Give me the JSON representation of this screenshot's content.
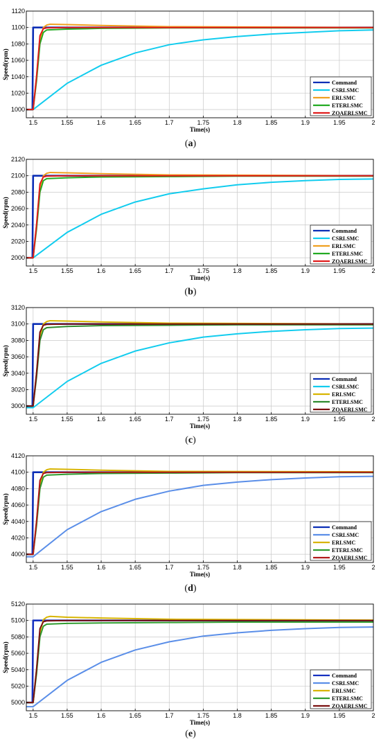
{
  "chart_data": [
    {
      "type": "line",
      "caption": "a",
      "xlabel": "Time(s)",
      "ylabel": "Speed(rpm)",
      "xlim": [
        1.49,
        2.0
      ],
      "ylim": [
        990,
        1120
      ],
      "xticks": [
        1.5,
        1.55,
        1.6,
        1.65,
        1.7,
        1.75,
        1.8,
        1.85,
        1.9,
        1.95,
        2
      ],
      "xtick_labels": [
        "1.5",
        "1.55",
        "1.6",
        "1.65",
        "1.7",
        "1.75",
        "1.8",
        "1.85",
        "1.9",
        "1.95",
        "2"
      ],
      "yticks": [
        1000,
        1020,
        1040,
        1060,
        1080,
        1100,
        1120
      ],
      "ytick_labels": [
        "1000",
        "1020",
        "1040",
        "1060",
        "1080",
        "1100",
        "1120"
      ],
      "grid": true,
      "legend_position": "bottom-right",
      "series": [
        {
          "name": "Command",
          "color": "#0a2db5",
          "x": [
            1.49,
            1.499,
            1.5,
            2.0
          ],
          "y": [
            1000,
            1000,
            1100,
            1100
          ]
        },
        {
          "name": "CSRLSMC",
          "color": "#11ccee",
          "x": [
            1.49,
            1.5,
            1.55,
            1.6,
            1.65,
            1.7,
            1.75,
            1.8,
            1.85,
            1.9,
            1.95,
            2.0
          ],
          "y": [
            1000,
            1000,
            1032,
            1054,
            1069,
            1079,
            1085,
            1089,
            1092,
            1094,
            1096,
            1097
          ]
        },
        {
          "name": "ERLSMC",
          "color": "#f0a020",
          "x": [
            1.49,
            1.5,
            1.505,
            1.51,
            1.515,
            1.52,
            1.525,
            1.55,
            1.6,
            1.7,
            2.0
          ],
          "y": [
            1000,
            1000,
            1040,
            1085,
            1100,
            1103,
            1104,
            1103.5,
            1102.5,
            1101,
            1100
          ]
        },
        {
          "name": "ETERLSMC",
          "color": "#22aa22",
          "x": [
            1.49,
            1.5,
            1.505,
            1.51,
            1.515,
            1.52,
            1.55,
            1.6,
            1.7,
            1.8,
            2.0
          ],
          "y": [
            1000,
            1000,
            1035,
            1080,
            1094,
            1097,
            1098,
            1099,
            1099.5,
            1099.5,
            1099.5
          ]
        },
        {
          "name": "ZOAERLSMC",
          "color": "#e01b1b",
          "x": [
            1.49,
            1.5,
            1.505,
            1.51,
            1.515,
            1.52,
            1.55,
            1.6,
            2.0
          ],
          "y": [
            1000,
            1000,
            1040,
            1090,
            1098.5,
            1099.5,
            1100,
            1100,
            1100
          ]
        }
      ]
    },
    {
      "type": "line",
      "caption": "b",
      "xlabel": "Time(s)",
      "ylabel": "Speed(rpm)",
      "xlim": [
        1.49,
        2.0
      ],
      "ylim": [
        1990,
        2120
      ],
      "xticks": [
        1.5,
        1.55,
        1.6,
        1.65,
        1.7,
        1.75,
        1.8,
        1.85,
        1.9,
        1.95,
        2
      ],
      "xtick_labels": [
        "1.5",
        "1.55",
        "1.6",
        "1.65",
        "1.7",
        "1.75",
        "1.8",
        "1.85",
        "1.9",
        "1.95",
        "2"
      ],
      "yticks": [
        2000,
        2020,
        2040,
        2060,
        2080,
        2100,
        2120
      ],
      "ytick_labels": [
        "2000",
        "2020",
        "2040",
        "2060",
        "2080",
        "2100",
        "2120"
      ],
      "grid": true,
      "legend_position": "bottom-right",
      "series": [
        {
          "name": "Command",
          "color": "#0a2db5",
          "x": [
            1.49,
            1.499,
            1.5,
            2.0
          ],
          "y": [
            2000,
            2000,
            2100,
            2100
          ]
        },
        {
          "name": "CSRLSMC",
          "color": "#11ccee",
          "x": [
            1.49,
            1.5,
            1.55,
            1.6,
            1.65,
            1.7,
            1.75,
            1.8,
            1.85,
            1.9,
            1.95,
            2.0
          ],
          "y": [
            2000,
            2000,
            2031,
            2053,
            2068,
            2078,
            2084,
            2089,
            2092,
            2094,
            2095.5,
            2096
          ]
        },
        {
          "name": "ERLSMC",
          "color": "#f0a020",
          "x": [
            1.49,
            1.5,
            1.505,
            1.51,
            1.515,
            1.52,
            1.525,
            1.55,
            1.6,
            1.7,
            2.0
          ],
          "y": [
            2000,
            2000,
            2040,
            2085,
            2100,
            2103,
            2104,
            2103.5,
            2102.5,
            2101,
            2100
          ]
        },
        {
          "name": "ETERLSMC",
          "color": "#22aa22",
          "x": [
            1.49,
            1.5,
            1.505,
            1.51,
            1.515,
            1.52,
            1.55,
            1.6,
            1.7,
            1.8,
            2.0
          ],
          "y": [
            2000,
            2000,
            2035,
            2080,
            2094,
            2096.5,
            2097.5,
            2098.5,
            2099,
            2099.5,
            2099.5
          ]
        },
        {
          "name": "ZOAERLSMC",
          "color": "#e01b1b",
          "x": [
            1.49,
            1.5,
            1.505,
            1.51,
            1.515,
            1.52,
            1.55,
            1.6,
            2.0
          ],
          "y": [
            2000,
            2000,
            2040,
            2090,
            2098.5,
            2099.5,
            2100,
            2100,
            2100
          ]
        }
      ]
    },
    {
      "type": "line",
      "caption": "c",
      "xlabel": "Time(s)",
      "ylabel": "Speed(rpm)",
      "xlim": [
        1.49,
        2.0
      ],
      "ylim": [
        2990,
        3120
      ],
      "xticks": [
        1.5,
        1.55,
        1.6,
        1.65,
        1.7,
        1.75,
        1.8,
        1.85,
        1.9,
        1.95,
        2
      ],
      "xtick_labels": [
        "1.5",
        "1.55",
        "1.6",
        "1.65",
        "1.7",
        "1.75",
        "1.8",
        "1.85",
        "1.9",
        "1.95",
        "2"
      ],
      "yticks": [
        3000,
        3020,
        3040,
        3060,
        3080,
        3100,
        3120
      ],
      "ytick_labels": [
        "3000",
        "3020",
        "3040",
        "3060",
        "3080",
        "3100",
        "3120"
      ],
      "grid": true,
      "legend_position": "bottom-right",
      "series": [
        {
          "name": "Command",
          "color": "#0a2db5",
          "x": [
            1.49,
            1.499,
            1.5,
            2.0
          ],
          "y": [
            3000,
            3000,
            3100,
            3100
          ]
        },
        {
          "name": "CSRLSMC",
          "color": "#11ccee",
          "x": [
            1.49,
            1.5,
            1.55,
            1.6,
            1.65,
            1.7,
            1.75,
            1.8,
            1.85,
            1.9,
            1.95,
            2.0
          ],
          "y": [
            2998,
            2998,
            3030,
            3052,
            3067,
            3077,
            3084,
            3088,
            3091,
            3093,
            3094.5,
            3095
          ]
        },
        {
          "name": "ERLSMC",
          "color": "#d8b400",
          "x": [
            1.49,
            1.5,
            1.505,
            1.51,
            1.515,
            1.52,
            1.525,
            1.55,
            1.6,
            1.7,
            2.0
          ],
          "y": [
            3000,
            3000,
            3040,
            3085,
            3100,
            3103,
            3104,
            3103.5,
            3102.5,
            3101,
            3100
          ]
        },
        {
          "name": "ETERLSMC",
          "color": "#2e8b2e",
          "x": [
            1.49,
            1.5,
            1.505,
            1.51,
            1.515,
            1.52,
            1.55,
            1.6,
            1.7,
            1.8,
            2.0
          ],
          "y": [
            3000,
            3000,
            3035,
            3080,
            3093,
            3095.5,
            3097,
            3098,
            3098.5,
            3099,
            3099
          ]
        },
        {
          "name": "ZOAERLSMC",
          "color": "#7a1010",
          "x": [
            1.49,
            1.5,
            1.505,
            1.51,
            1.515,
            1.52,
            1.55,
            1.6,
            2.0
          ],
          "y": [
            3000,
            3000,
            3040,
            3090,
            3098.5,
            3099.5,
            3100,
            3100,
            3100
          ]
        }
      ]
    },
    {
      "type": "line",
      "caption": "d",
      "xlabel": "Time(s)",
      "ylabel": "Speed(rpm)",
      "xlim": [
        1.49,
        2.0
      ],
      "ylim": [
        3990,
        4120
      ],
      "xticks": [
        1.5,
        1.55,
        1.6,
        1.65,
        1.7,
        1.75,
        1.8,
        1.85,
        1.9,
        1.95,
        2
      ],
      "xtick_labels": [
        "1.5",
        "1.55",
        "1.6",
        "1.65",
        "1.7",
        "1.75",
        "1.8",
        "1.85",
        "1.9",
        "1.95",
        "2"
      ],
      "yticks": [
        4000,
        4020,
        4040,
        4060,
        4080,
        4100,
        4120
      ],
      "ytick_labels": [
        "4000",
        "4020",
        "4040",
        "4060",
        "4080",
        "4100",
        "4120"
      ],
      "grid": true,
      "legend_position": "bottom-right",
      "series": [
        {
          "name": "Command",
          "color": "#0a2db5",
          "x": [
            1.49,
            1.499,
            1.5,
            2.0
          ],
          "y": [
            4000,
            4000,
            4100,
            4100
          ]
        },
        {
          "name": "CSRLSMC",
          "color": "#5a8ee8",
          "x": [
            1.49,
            1.5,
            1.55,
            1.6,
            1.65,
            1.7,
            1.75,
            1.8,
            1.85,
            1.9,
            1.95,
            2.0
          ],
          "y": [
            3997,
            3997,
            4030,
            4052,
            4067,
            4077,
            4084,
            4088,
            4091,
            4093,
            4094.5,
            4095
          ]
        },
        {
          "name": "ERLSMC",
          "color": "#d8b400",
          "x": [
            1.49,
            1.5,
            1.505,
            1.51,
            1.515,
            1.52,
            1.525,
            1.55,
            1.6,
            1.7,
            2.0
          ],
          "y": [
            4000,
            4000,
            4040,
            4085,
            4100,
            4103,
            4104,
            4103.5,
            4102.5,
            4101,
            4100.5
          ]
        },
        {
          "name": "ETERLSMC",
          "color": "#2e9b2e",
          "x": [
            1.49,
            1.5,
            1.505,
            1.51,
            1.515,
            1.52,
            1.55,
            1.6,
            1.7,
            1.8,
            2.0
          ],
          "y": [
            4000,
            4000,
            4035,
            4080,
            4094,
            4096.5,
            4097.5,
            4098.5,
            4099,
            4099.5,
            4099.5
          ]
        },
        {
          "name": "ZOAERLSMC",
          "color": "#b01818",
          "x": [
            1.49,
            1.5,
            1.505,
            1.51,
            1.515,
            1.52,
            1.55,
            1.6,
            2.0
          ],
          "y": [
            4000,
            4000,
            4040,
            4090,
            4098.5,
            4099.5,
            4100,
            4100,
            4100
          ]
        }
      ]
    },
    {
      "type": "line",
      "caption": "e",
      "xlabel": "Time(s)",
      "ylabel": "Speed(rpm)",
      "xlim": [
        1.49,
        2.0
      ],
      "ylim": [
        4990,
        5120
      ],
      "xticks": [
        1.5,
        1.55,
        1.6,
        1.65,
        1.7,
        1.75,
        1.8,
        1.85,
        1.9,
        1.95,
        2
      ],
      "xtick_labels": [
        "1.5",
        "1.55",
        "1.6",
        "1.65",
        "1.7",
        "1.75",
        "1.8",
        "1.85",
        "1.9",
        "1.95",
        "2"
      ],
      "yticks": [
        5000,
        5020,
        5040,
        5060,
        5080,
        5100,
        5120
      ],
      "ytick_labels": [
        "5000",
        "5020",
        "5040",
        "5060",
        "5080",
        "5100",
        "5120"
      ],
      "grid": true,
      "legend_position": "bottom-right",
      "series": [
        {
          "name": "Command",
          "color": "#1530c0",
          "x": [
            1.49,
            1.499,
            1.5,
            2.0
          ],
          "y": [
            5000,
            5000,
            5100,
            5100
          ]
        },
        {
          "name": "CSRLSMC",
          "color": "#5a8ee8",
          "x": [
            1.49,
            1.5,
            1.55,
            1.6,
            1.65,
            1.7,
            1.75,
            1.8,
            1.85,
            1.9,
            1.95,
            2.0
          ],
          "y": [
            4995,
            4995,
            5027,
            5049,
            5064,
            5074,
            5081,
            5085,
            5088,
            5090,
            5091.5,
            5092
          ]
        },
        {
          "name": "ERLSMC",
          "color": "#d8b400",
          "x": [
            1.49,
            1.5,
            1.505,
            1.51,
            1.515,
            1.52,
            1.525,
            1.55,
            1.6,
            1.7,
            2.0
          ],
          "y": [
            5000,
            5000,
            5040,
            5085,
            5101,
            5104,
            5105,
            5104,
            5103,
            5101.5,
            5100.5
          ]
        },
        {
          "name": "ETERLSMC",
          "color": "#2e9b2e",
          "x": [
            1.49,
            1.5,
            1.505,
            1.51,
            1.515,
            1.52,
            1.55,
            1.6,
            1.7,
            1.8,
            2.0
          ],
          "y": [
            5000,
            5000,
            5035,
            5080,
            5093,
            5095.5,
            5096.5,
            5097,
            5097.5,
            5098,
            5098
          ]
        },
        {
          "name": "ZOAERLSMC",
          "color": "#7a1010",
          "x": [
            1.49,
            1.5,
            1.505,
            1.51,
            1.515,
            1.52,
            1.55,
            1.6,
            2.0
          ],
          "y": [
            5000,
            5000,
            5040,
            5090,
            5098.5,
            5099.5,
            5100,
            5100,
            5100
          ]
        }
      ]
    }
  ]
}
